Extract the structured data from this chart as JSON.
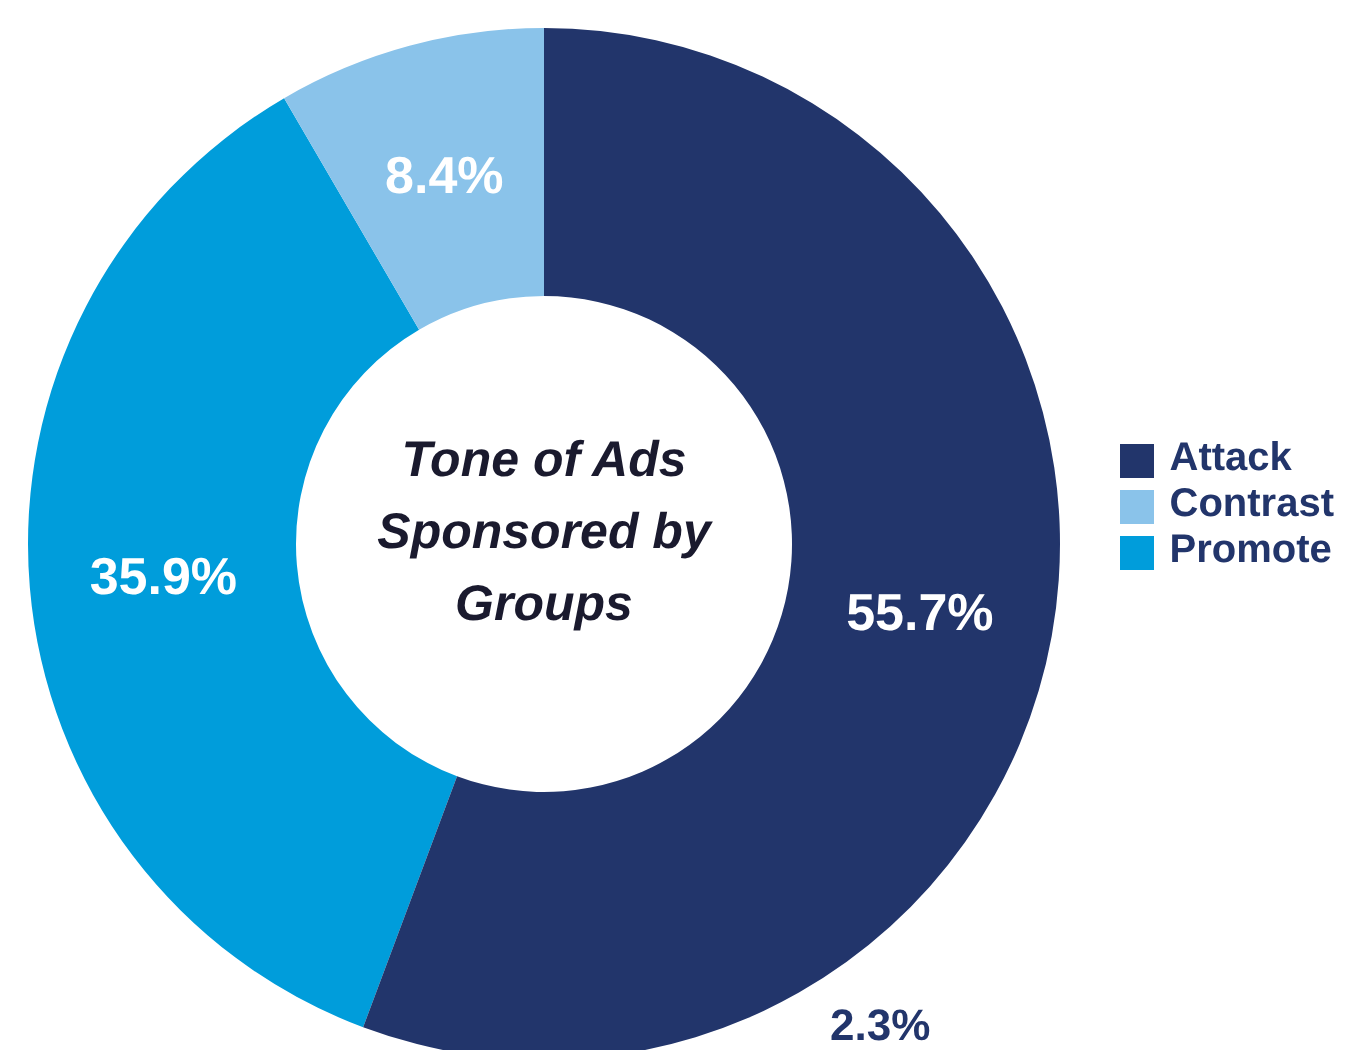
{
  "chart_data": {
    "type": "donut",
    "title": "Tone of Ads Sponsored by Groups",
    "categories": [
      "Promote",
      "Contrast",
      "Attack"
    ],
    "values": [
      35.9,
      8.4,
      55.7
    ],
    "colors": [
      "#009ddb",
      "#8ac3ea",
      "#22356b"
    ],
    "value_labels": [
      "35.9%",
      "8.4%",
      "55.7%"
    ],
    "annotations": [
      "2.3%"
    ],
    "legend": "right"
  }
}
